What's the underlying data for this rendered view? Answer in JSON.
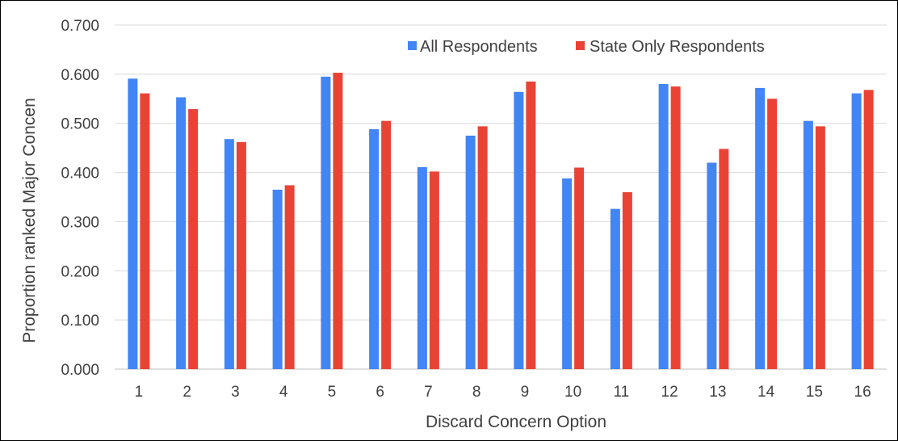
{
  "chart_data": {
    "type": "bar",
    "categories": [
      "1",
      "2",
      "3",
      "4",
      "5",
      "6",
      "7",
      "8",
      "9",
      "10",
      "11",
      "12",
      "13",
      "14",
      "15",
      "16"
    ],
    "series": [
      {
        "name": "All Respondents",
        "color": "#4285F4",
        "values": [
          0.591,
          0.553,
          0.468,
          0.365,
          0.595,
          0.488,
          0.411,
          0.475,
          0.564,
          0.388,
          0.326,
          0.58,
          0.42,
          0.572,
          0.505,
          0.561
        ]
      },
      {
        "name": "State Only Respondents",
        "color": "#EA4335",
        "values": [
          0.561,
          0.529,
          0.462,
          0.374,
          0.603,
          0.505,
          0.402,
          0.494,
          0.585,
          0.41,
          0.36,
          0.575,
          0.448,
          0.55,
          0.494,
          0.568
        ]
      }
    ],
    "title": "",
    "xlabel": "Discard Concern Option",
    "ylabel": "Proportion ranked Major Concen",
    "ylim": [
      0,
      0.7
    ],
    "yticks": [
      "0.000",
      "0.100",
      "0.200",
      "0.300",
      "0.400",
      "0.500",
      "0.600",
      "0.700"
    ],
    "grid": true,
    "gridlines": "horizontal",
    "legend_position": "top-right"
  }
}
